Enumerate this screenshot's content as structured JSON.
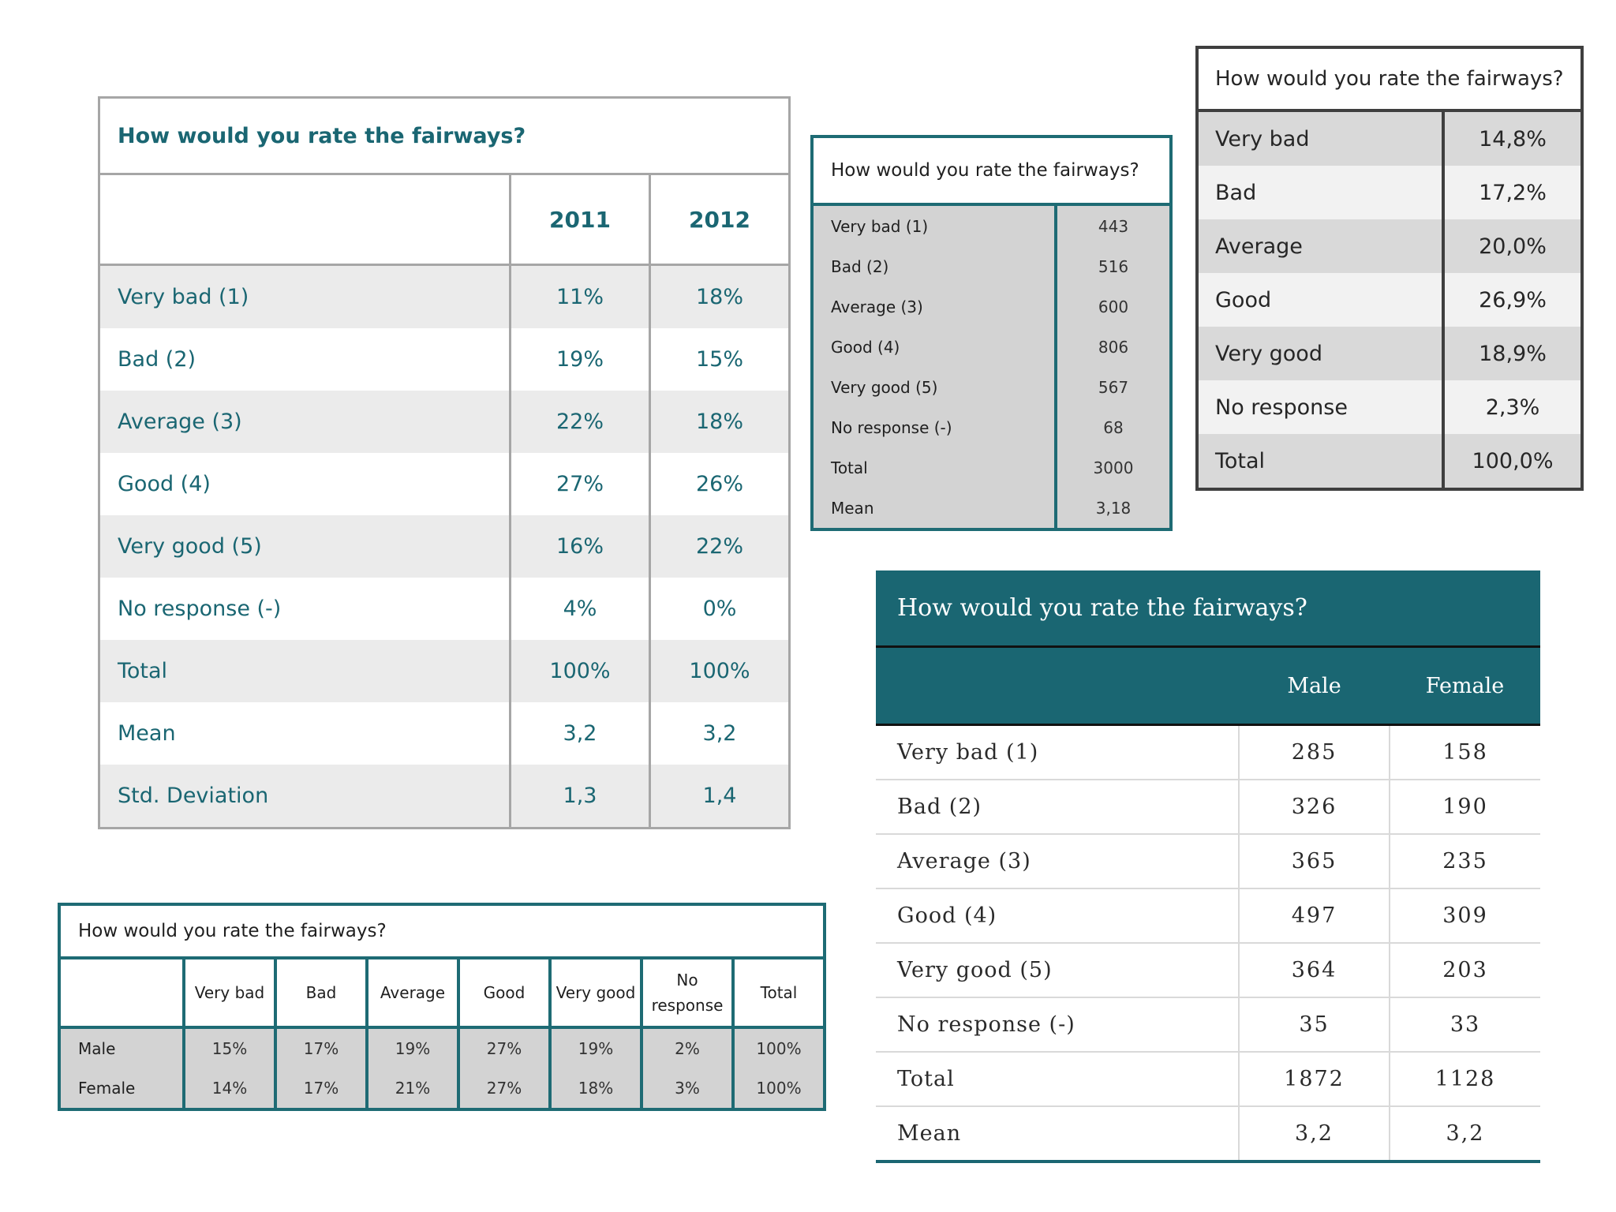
{
  "question": "How would you rate the fairways?",
  "by_year": {
    "years": [
      "2011",
      "2012"
    ],
    "rows": [
      {
        "label": "Very bad (1)",
        "values": [
          "11%",
          "18%"
        ]
      },
      {
        "label": "Bad (2)",
        "values": [
          "19%",
          "15%"
        ]
      },
      {
        "label": "Average (3)",
        "values": [
          "22%",
          "18%"
        ]
      },
      {
        "label": "Good (4)",
        "values": [
          "27%",
          "26%"
        ]
      },
      {
        "label": "Very good (5)",
        "values": [
          "16%",
          "22%"
        ]
      },
      {
        "label": "No response (-)",
        "values": [
          "4%",
          "0%"
        ]
      },
      {
        "label": "Total",
        "values": [
          "100%",
          "100%"
        ]
      },
      {
        "label": "Mean",
        "values": [
          "3,2",
          "3,2"
        ]
      },
      {
        "label": "Std. Deviation",
        "values": [
          "1,3",
          "1,4"
        ]
      }
    ]
  },
  "counts": {
    "rows": [
      {
        "label": "Very bad (1)",
        "value": "443"
      },
      {
        "label": "Bad (2)",
        "value": "516"
      },
      {
        "label": "Average (3)",
        "value": "600"
      },
      {
        "label": "Good (4)",
        "value": "806"
      },
      {
        "label": "Very good (5)",
        "value": "567"
      },
      {
        "label": "No response (-)",
        "value": "68"
      },
      {
        "label": "Total",
        "value": "3000"
      },
      {
        "label": "Mean",
        "value": "3,18"
      }
    ]
  },
  "percentages": {
    "rows": [
      {
        "label": "Very bad",
        "value": "14,8%"
      },
      {
        "label": "Bad",
        "value": "17,2%"
      },
      {
        "label": "Average",
        "value": "20,0%"
      },
      {
        "label": "Good",
        "value": "26,9%"
      },
      {
        "label": "Very good",
        "value": "18,9%"
      },
      {
        "label": "No response",
        "value": "2,3%"
      },
      {
        "label": "Total",
        "value": "100,0%"
      }
    ]
  },
  "horizontal": {
    "headers": [
      "Very bad",
      "Bad",
      "Average",
      "Good",
      "Very good",
      "No response",
      "Total"
    ],
    "rows": [
      {
        "label": "Male",
        "values": [
          "15%",
          "17%",
          "19%",
          "27%",
          "19%",
          "2%",
          "100%"
        ]
      },
      {
        "label": "Female",
        "values": [
          "14%",
          "17%",
          "21%",
          "27%",
          "18%",
          "3%",
          "100%"
        ]
      }
    ]
  },
  "by_gender": {
    "headers": [
      "Male",
      "Female"
    ],
    "rows": [
      {
        "label": "Very bad (1)",
        "values": [
          "285",
          "158"
        ]
      },
      {
        "label": "Bad (2)",
        "values": [
          "326",
          "190"
        ]
      },
      {
        "label": "Average (3)",
        "values": [
          "365",
          "235"
        ]
      },
      {
        "label": "Good (4)",
        "values": [
          "497",
          "309"
        ]
      },
      {
        "label": "Very good (5)",
        "values": [
          "364",
          "203"
        ]
      },
      {
        "label": "No response (-)",
        "values": [
          "35",
          "33"
        ]
      },
      {
        "label": "Total",
        "values": [
          "1872",
          "1128"
        ]
      },
      {
        "label": "Mean",
        "values": [
          "3,2",
          "3,2"
        ]
      }
    ]
  }
}
